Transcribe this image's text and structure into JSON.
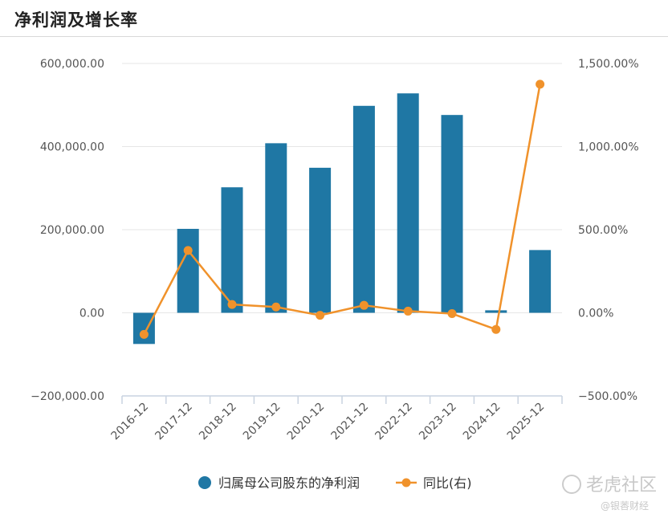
{
  "header": {
    "title": "净利润及增长率"
  },
  "colors": {
    "bar": "#1f77a4",
    "line": "#f0922b",
    "grid": "#e6e6e6",
    "axis": "#c9d3e0"
  },
  "chart_data": {
    "type": "bar",
    "title": "净利润及增长率",
    "categories": [
      "2016-12",
      "2017-12",
      "2018-12",
      "2019-12",
      "2020-12",
      "2021-12",
      "2022-12",
      "2023-12",
      "2024-12",
      "2025-12"
    ],
    "series": [
      {
        "name": "归属母公司股东的净利润",
        "type": "bar",
        "axis": "left",
        "values": [
          -75000,
          202000,
          302000,
          408000,
          349000,
          498000,
          528000,
          476000,
          6000,
          151000
        ]
      },
      {
        "name": "同比(右)",
        "type": "line",
        "axis": "right",
        "values": [
          -130,
          375,
          50,
          35,
          -15,
          45,
          10,
          -5,
          -100,
          1375
        ]
      }
    ],
    "y_left": {
      "range": [
        -200000,
        600000
      ],
      "ticks": [
        600000,
        400000,
        200000,
        0,
        -200000
      ],
      "tick_labels": [
        "600,000.00",
        "400,000.00",
        "200,000.00",
        "0.00",
        "−200,000.00"
      ]
    },
    "y_right": {
      "range": [
        -500,
        1500
      ],
      "ticks": [
        1500,
        1000,
        500,
        0,
        -500
      ],
      "tick_labels": [
        "1,500.00%",
        "1,000.00%",
        "500.00%",
        "0.00%",
        "−500.00%"
      ]
    },
    "grid": true,
    "legend_position": "bottom-center"
  },
  "legend": [
    {
      "label": "归属母公司股东的净利润",
      "marker": "dot"
    },
    {
      "label": "同比(右)",
      "marker": "line-dot"
    }
  ],
  "watermark": {
    "main": "老虎社区",
    "sub": "@银莕财经"
  }
}
